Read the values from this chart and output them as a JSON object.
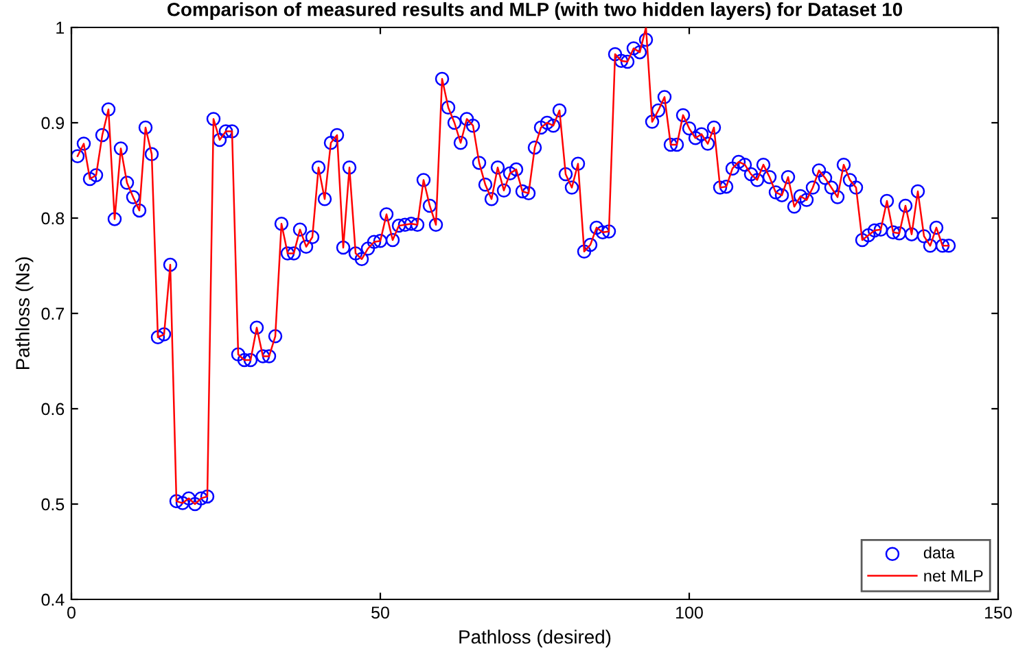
{
  "chart_data": {
    "type": "scatter",
    "title": "Comparison of measured results and MLP (with two hidden layers) for Dataset 10",
    "xlabel": "Pathloss (desired)",
    "ylabel": "Pathloss (Ns)",
    "x": [
      1,
      2,
      3,
      4,
      5,
      6,
      7,
      8,
      9,
      10,
      11,
      12,
      13,
      14,
      15,
      16,
      17,
      18,
      19,
      20,
      21,
      22,
      23,
      24,
      25,
      26,
      27,
      28,
      29,
      30,
      31,
      32,
      33,
      34,
      35,
      36,
      37,
      38,
      39,
      40,
      41,
      42,
      43,
      44,
      45,
      46,
      47,
      48,
      49,
      50,
      51,
      52,
      53,
      54,
      55,
      56,
      57,
      58,
      59,
      60,
      61,
      62,
      63,
      64,
      65,
      66,
      67,
      68,
      69,
      70,
      71,
      72,
      73,
      74,
      75,
      76,
      77,
      78,
      79,
      80,
      81,
      82,
      83,
      84,
      85,
      86,
      87,
      88,
      89,
      90,
      91,
      92,
      93,
      94,
      95,
      96,
      97,
      98,
      99,
      100,
      101,
      102,
      103,
      104,
      105,
      106,
      107,
      108,
      109,
      110,
      111,
      112,
      113,
      114,
      115,
      116,
      117,
      118,
      119,
      120,
      121,
      122,
      123,
      124,
      125,
      126,
      127,
      128,
      129,
      130,
      131,
      132,
      133,
      134,
      135,
      136,
      137,
      138,
      139,
      140,
      141,
      142
    ],
    "series": [
      {
        "name": "data",
        "color": "#0000ff",
        "marker": "circle",
        "values": [
          0.865,
          0.878,
          0.841,
          0.845,
          0.887,
          0.914,
          0.799,
          0.873,
          0.837,
          0.822,
          0.808,
          0.895,
          0.867,
          0.675,
          0.678,
          0.751,
          0.503,
          0.501,
          0.506,
          0.5,
          0.506,
          0.508,
          0.904,
          0.882,
          0.891,
          0.891,
          0.657,
          0.651,
          0.651,
          0.685,
          0.655,
          0.655,
          0.676,
          0.794,
          0.763,
          0.763,
          0.788,
          0.77,
          0.78,
          0.853,
          0.82,
          0.879,
          0.887,
          0.769,
          0.853,
          0.763,
          0.757,
          0.768,
          0.775,
          0.776,
          0.804,
          0.777,
          0.792,
          0.793,
          0.794,
          0.793,
          0.84,
          0.813,
          0.793,
          0.946,
          0.916,
          0.9,
          0.879,
          0.904,
          0.897,
          0.858,
          0.835,
          0.82,
          0.853,
          0.829,
          0.847,
          0.851,
          0.828,
          0.826,
          0.874,
          0.895,
          0.9,
          0.897,
          0.913,
          0.846,
          0.832,
          0.857,
          0.765,
          0.772,
          0.79,
          0.785,
          0.786,
          0.972,
          0.965,
          0.964,
          0.978,
          0.974,
          0.987,
          0.901,
          0.913,
          0.927,
          0.877,
          0.877,
          0.908,
          0.894,
          0.884,
          0.888,
          0.878,
          0.895,
          0.832,
          0.833,
          0.852,
          0.859,
          0.856,
          0.846,
          0.84,
          0.856,
          0.843,
          0.827,
          0.824,
          0.843,
          0.812,
          0.823,
          0.819,
          0.832,
          0.85,
          0.842,
          0.832,
          0.822,
          0.856,
          0.84,
          0.832,
          0.777,
          0.782,
          0.787,
          0.788,
          0.818,
          0.785,
          0.784,
          0.813,
          0.783,
          0.828,
          0.781,
          0.771,
          0.79,
          0.771,
          0.771
        ]
      },
      {
        "name": "net MLP",
        "type": "line",
        "color": "#ff0000",
        "marker": "none",
        "line_style": "solid",
        "values": [
          0.865,
          0.878,
          0.841,
          0.845,
          0.887,
          0.914,
          0.799,
          0.873,
          0.837,
          0.822,
          0.808,
          0.895,
          0.867,
          0.675,
          0.678,
          0.751,
          0.503,
          0.501,
          0.506,
          0.5,
          0.506,
          0.508,
          0.904,
          0.882,
          0.891,
          0.891,
          0.657,
          0.651,
          0.651,
          0.685,
          0.655,
          0.655,
          0.676,
          0.794,
          0.763,
          0.763,
          0.788,
          0.77,
          0.78,
          0.853,
          0.82,
          0.879,
          0.887,
          0.769,
          0.853,
          0.763,
          0.757,
          0.768,
          0.775,
          0.776,
          0.804,
          0.777,
          0.792,
          0.793,
          0.794,
          0.793,
          0.84,
          0.813,
          0.793,
          0.946,
          0.916,
          0.9,
          0.879,
          0.904,
          0.897,
          0.858,
          0.835,
          0.82,
          0.853,
          0.829,
          0.847,
          0.851,
          0.828,
          0.826,
          0.874,
          0.895,
          0.9,
          0.897,
          0.913,
          0.846,
          0.832,
          0.857,
          0.765,
          0.772,
          0.79,
          0.785,
          0.786,
          0.972,
          0.965,
          0.964,
          0.978,
          0.974,
          1.0,
          0.901,
          0.913,
          0.927,
          0.877,
          0.877,
          0.908,
          0.894,
          0.884,
          0.888,
          0.878,
          0.895,
          0.832,
          0.833,
          0.852,
          0.859,
          0.856,
          0.846,
          0.84,
          0.856,
          0.843,
          0.827,
          0.824,
          0.843,
          0.812,
          0.823,
          0.819,
          0.832,
          0.85,
          0.842,
          0.832,
          0.822,
          0.856,
          0.84,
          0.832,
          0.777,
          0.782,
          0.787,
          0.788,
          0.818,
          0.785,
          0.784,
          0.813,
          0.783,
          0.828,
          0.781,
          0.771,
          0.79,
          0.771,
          0.771
        ]
      }
    ],
    "xlim": [
      0,
      150
    ],
    "xticks": [
      0,
      50,
      100,
      150
    ],
    "ylim": [
      0.4,
      1
    ],
    "yticks": [
      0.4,
      0.5,
      0.6,
      0.7,
      0.8,
      0.9,
      1
    ],
    "grid": false,
    "legend": "bottom right"
  }
}
